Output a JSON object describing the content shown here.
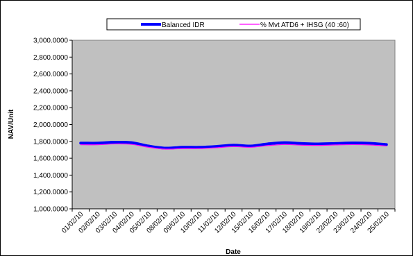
{
  "chart_data": {
    "type": "line",
    "title": "",
    "xlabel": "Date",
    "ylabel": "NAV/Unit",
    "ylim": [
      1000,
      3000
    ],
    "y_ticks": [
      "1,000.0000",
      "1,200.0000",
      "1,400.0000",
      "1,600.0000",
      "1,800.0000",
      "2,000.0000",
      "2,200.0000",
      "2,400.0000",
      "2,600.0000",
      "2,800.0000",
      "3,000.0000"
    ],
    "categories": [
      "01/02/10",
      "02/02/10",
      "03/02/10",
      "04/02/10",
      "05/02/10",
      "08/02/10",
      "09/02/10",
      "10/02/10",
      "11/02/10",
      "12/02/10",
      "15/02/10",
      "16/02/10",
      "17/02/10",
      "18/02/10",
      "19/02/10",
      "22/02/10",
      "23/02/10",
      "24/02/10",
      "25/02/10"
    ],
    "series": [
      {
        "name": "Balanced IDR",
        "color": "#0000ff",
        "values": [
          1780,
          1780,
          1790,
          1785,
          1745,
          1720,
          1730,
          1730,
          1740,
          1755,
          1745,
          1770,
          1785,
          1775,
          1770,
          1775,
          1782,
          1778,
          1762
        ]
      },
      {
        "name": "% Mvt ATD6 + IHSG (40 :60)",
        "color": "#ff00ff",
        "values": [
          1760,
          1760,
          1770,
          1765,
          1730,
          1708,
          1715,
          1715,
          1725,
          1738,
          1730,
          1750,
          1763,
          1755,
          1752,
          1758,
          1762,
          1758,
          1745
        ]
      }
    ],
    "plot_background": "#c0c0c0",
    "grid": false,
    "legend_position": "top"
  }
}
